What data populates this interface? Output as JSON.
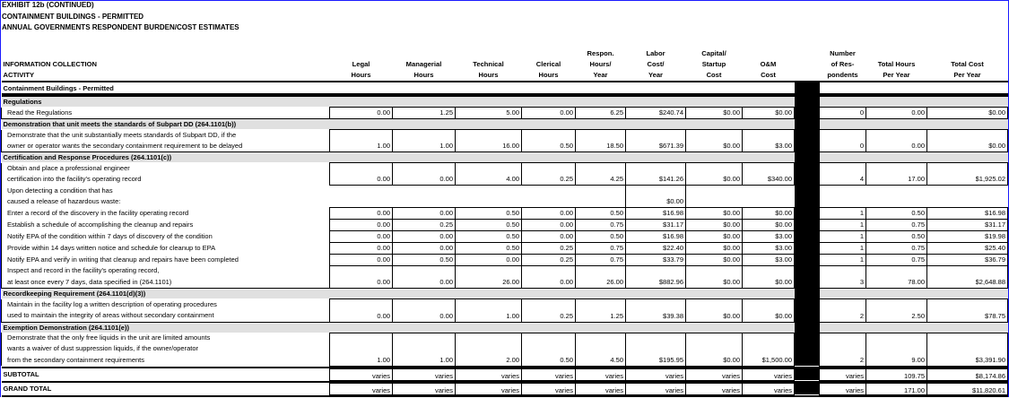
{
  "titles": [
    "EXHIBIT 12b (CONTINUED)",
    "CONTAINMENT BUILDINGS - PERMITTED",
    "ANNUAL GOVERNMENTS RESPONDENT BURDEN/COST ESTIMATES"
  ],
  "columns": {
    "activity": [
      "INFORMATION COLLECTION",
      "ACTIVITY"
    ],
    "legal": [
      "Legal",
      "Hours"
    ],
    "managerial": [
      "Managerial",
      "Hours"
    ],
    "technical": [
      "Technical",
      "Hours"
    ],
    "clerical": [
      "Clerical",
      "Hours"
    ],
    "respon": [
      "Respon.",
      "Hours/",
      "Year"
    ],
    "labor": [
      "Labor",
      "Cost/",
      "Year"
    ],
    "capital": [
      "Capital/",
      "Startup",
      "Cost"
    ],
    "om": [
      "O&M",
      "Cost"
    ],
    "respondents": [
      "Number",
      "of Res-",
      "pondents"
    ],
    "total_hours": [
      "Total Hours",
      "Per Year"
    ],
    "total_cost": [
      "Total Cost",
      "Per Year"
    ]
  },
  "group_title": "Containment Buildings - Permitted",
  "rows": [
    {
      "type": "section",
      "label": "Regulations"
    },
    {
      "type": "item",
      "lines": [
        "Read the Regulations"
      ],
      "values": [
        "0.00",
        "1.25",
        "5.00",
        "0.00",
        "6.25",
        "$240.74",
        "$0.00",
        "$0.00",
        "0",
        "0.00",
        "$0.00"
      ]
    },
    {
      "type": "section",
      "label": "Demonstration that unit meets the standards of Subpart DD (264.1101(b))"
    },
    {
      "type": "item",
      "lines": [
        "Demonstrate that the unit substantially meets standards of Subpart DD, if the",
        "owner or operator wants the secondary containment requirement to be delayed"
      ],
      "values": [
        "1.00",
        "1.00",
        "16.00",
        "0.50",
        "18.50",
        "$671.39",
        "$0.00",
        "$3.00",
        "0",
        "0.00",
        "$0.00"
      ]
    },
    {
      "type": "section",
      "label": "Certification and Response Procedures (264.1101(c))"
    },
    {
      "type": "item",
      "lines": [
        "Obtain and place a professional engineer",
        "certification into the facility's operating record"
      ],
      "values": [
        "0.00",
        "0.00",
        "4.00",
        "0.25",
        "4.25",
        "$141.26",
        "$0.00",
        "$340.00",
        "4",
        "17.00",
        "$1,925.02"
      ]
    },
    {
      "type": "note",
      "lines": [
        "Upon detecting a condition that has",
        "caused a release of hazardous waste:"
      ],
      "labor": "$0.00"
    },
    {
      "type": "item",
      "lines": [
        "Enter a record of the discovery in the facility operating record"
      ],
      "values": [
        "0.00",
        "0.00",
        "0.50",
        "0.00",
        "0.50",
        "$16.98",
        "$0.00",
        "$0.00",
        "1",
        "0.50",
        "$16.98"
      ]
    },
    {
      "type": "item",
      "lines": [
        "Establish a schedule of accomplishing the cleanup and repairs"
      ],
      "values": [
        "0.00",
        "0.25",
        "0.50",
        "0.00",
        "0.75",
        "$31.17",
        "$0.00",
        "$0.00",
        "1",
        "0.75",
        "$31.17"
      ]
    },
    {
      "type": "item",
      "lines": [
        "Notify EPA of the condition within 7 days of discovery of the condition"
      ],
      "values": [
        "0.00",
        "0.00",
        "0.50",
        "0.00",
        "0.50",
        "$16.98",
        "$0.00",
        "$3.00",
        "1",
        "0.50",
        "$19.98"
      ]
    },
    {
      "type": "item",
      "lines": [
        "Provide within 14 days written notice and schedule for cleanup to EPA"
      ],
      "values": [
        "0.00",
        "0.00",
        "0.50",
        "0.25",
        "0.75",
        "$22.40",
        "$0.00",
        "$3.00",
        "1",
        "0.75",
        "$25.40"
      ]
    },
    {
      "type": "item",
      "lines": [
        "Notify EPA and verify in writing that cleanup and repairs have been completed"
      ],
      "values": [
        "0.00",
        "0.50",
        "0.00",
        "0.25",
        "0.75",
        "$33.79",
        "$0.00",
        "$3.00",
        "1",
        "0.75",
        "$36.79"
      ]
    },
    {
      "type": "item",
      "lines": [
        "Inspect and record in the facility's operating record,",
        "at least once every 7 days, data specified in (264.1101)"
      ],
      "values": [
        "0.00",
        "0.00",
        "26.00",
        "0.00",
        "26.00",
        "$882.96",
        "$0.00",
        "$0.00",
        "3",
        "78.00",
        "$2,648.88"
      ]
    },
    {
      "type": "section",
      "label": "Recordkeeping Requirement (264.1101(d)(3))"
    },
    {
      "type": "item",
      "lines": [
        "Maintain in the facility log a written description of operating procedures",
        "used to maintain the integrity of areas without secondary containment"
      ],
      "values": [
        "0.00",
        "0.00",
        "1.00",
        "0.25",
        "1.25",
        "$39.38",
        "$0.00",
        "$0.00",
        "2",
        "2.50",
        "$78.75"
      ]
    },
    {
      "type": "section",
      "label": "Exemption Demonstration (264.1101(e))"
    },
    {
      "type": "item",
      "lines": [
        "Demonstrate that the only free liquids in the unit are limited amounts",
        "wants a waiver of dust suppression liquids, if the owner/operator",
        "from the secondary containment requirements"
      ],
      "values": [
        "1.00",
        "1.00",
        "2.00",
        "0.50",
        "4.50",
        "$195.95",
        "$0.00",
        "$1,500.00",
        "2",
        "9.00",
        "$3,391.90"
      ]
    }
  ],
  "totals": [
    {
      "label": "SUBTOTAL",
      "values": [
        "varies",
        "varies",
        "varies",
        "varies",
        "varies",
        "varies",
        "varies",
        "varies",
        "varies",
        "109.75",
        "$8,174.86"
      ]
    },
    {
      "label": "GRAND TOTAL",
      "values": [
        "varies",
        "varies",
        "varies",
        "varies",
        "varies",
        "varies",
        "varies",
        "varies",
        "varies",
        "171.00",
        "$11,820.61"
      ]
    }
  ],
  "colors": {
    "section_bg": "#e0e0e0",
    "frame": "#1a1aff",
    "divider": "#000000"
  }
}
